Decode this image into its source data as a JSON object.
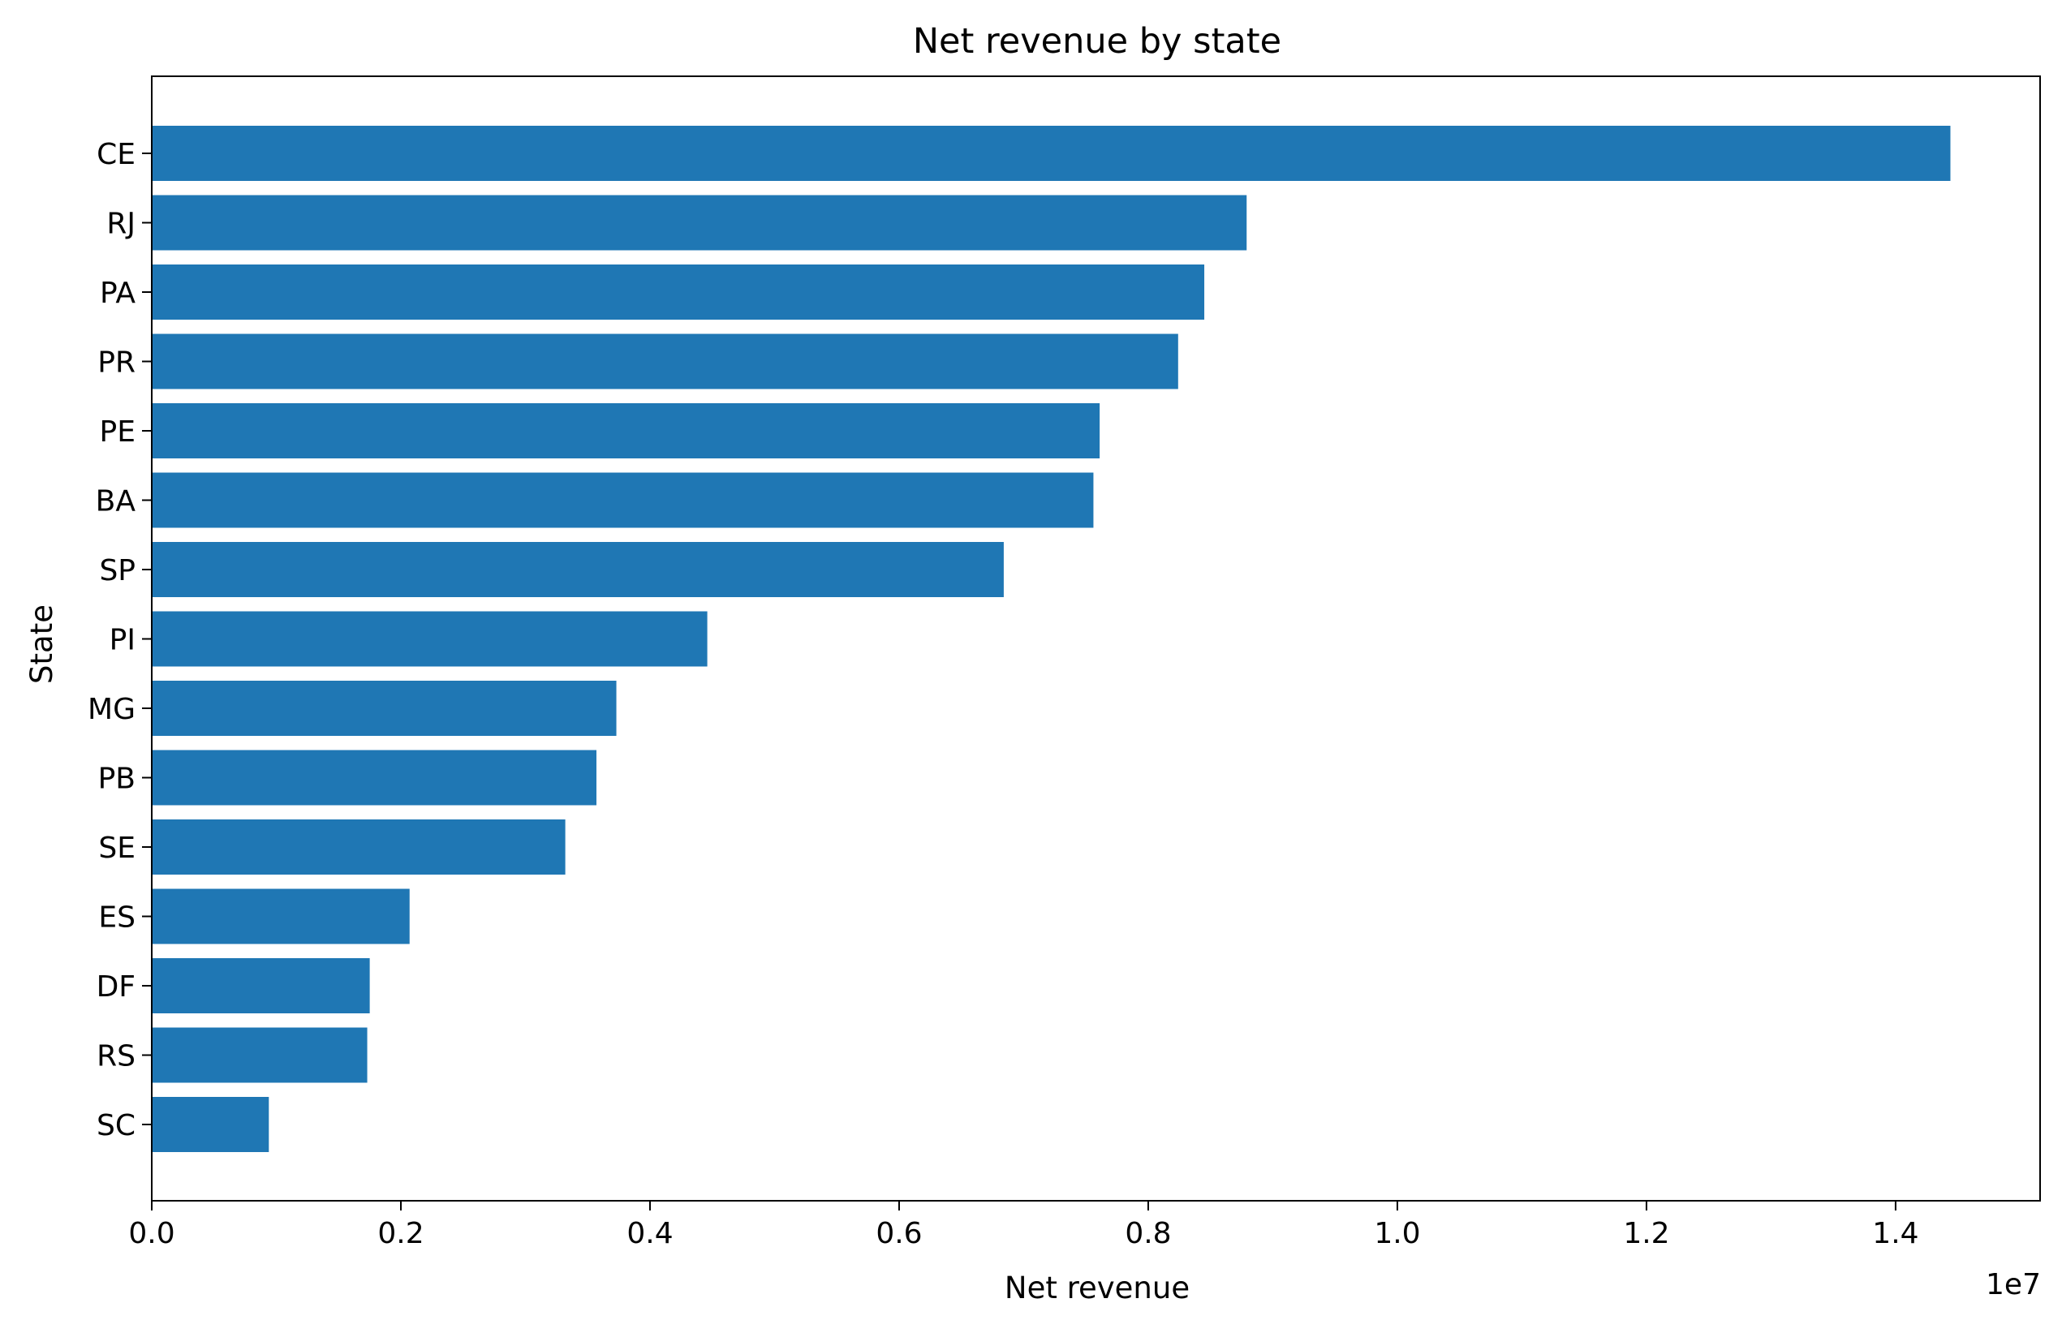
{
  "chart_data": {
    "type": "bar",
    "orientation": "horizontal",
    "title": "Net revenue by state",
    "xlabel": "Net revenue",
    "ylabel": "State",
    "x_offset_label": "1e7",
    "x_scale_factor": 10000000,
    "xlim": [
      0,
      15160000
    ],
    "xticks": [
      0.0,
      0.2,
      0.4,
      0.6,
      0.8,
      1.0,
      1.2,
      1.4
    ],
    "xtick_labels": [
      "0.0",
      "0.2",
      "0.4",
      "0.6",
      "0.8",
      "1.0",
      "1.2",
      "1.4"
    ],
    "categories": [
      "CE",
      "RJ",
      "PA",
      "PR",
      "PE",
      "BA",
      "SP",
      "PI",
      "MG",
      "PB",
      "SE",
      "ES",
      "DF",
      "RS",
      "SC"
    ],
    "values": [
      14440000,
      8790000,
      8450000,
      8240000,
      7610000,
      7560000,
      6840000,
      4460000,
      3730000,
      3570000,
      3320000,
      2070000,
      1750000,
      1730000,
      940000
    ],
    "bar_color": "#1f77b4",
    "grid": false,
    "legend": "none"
  }
}
